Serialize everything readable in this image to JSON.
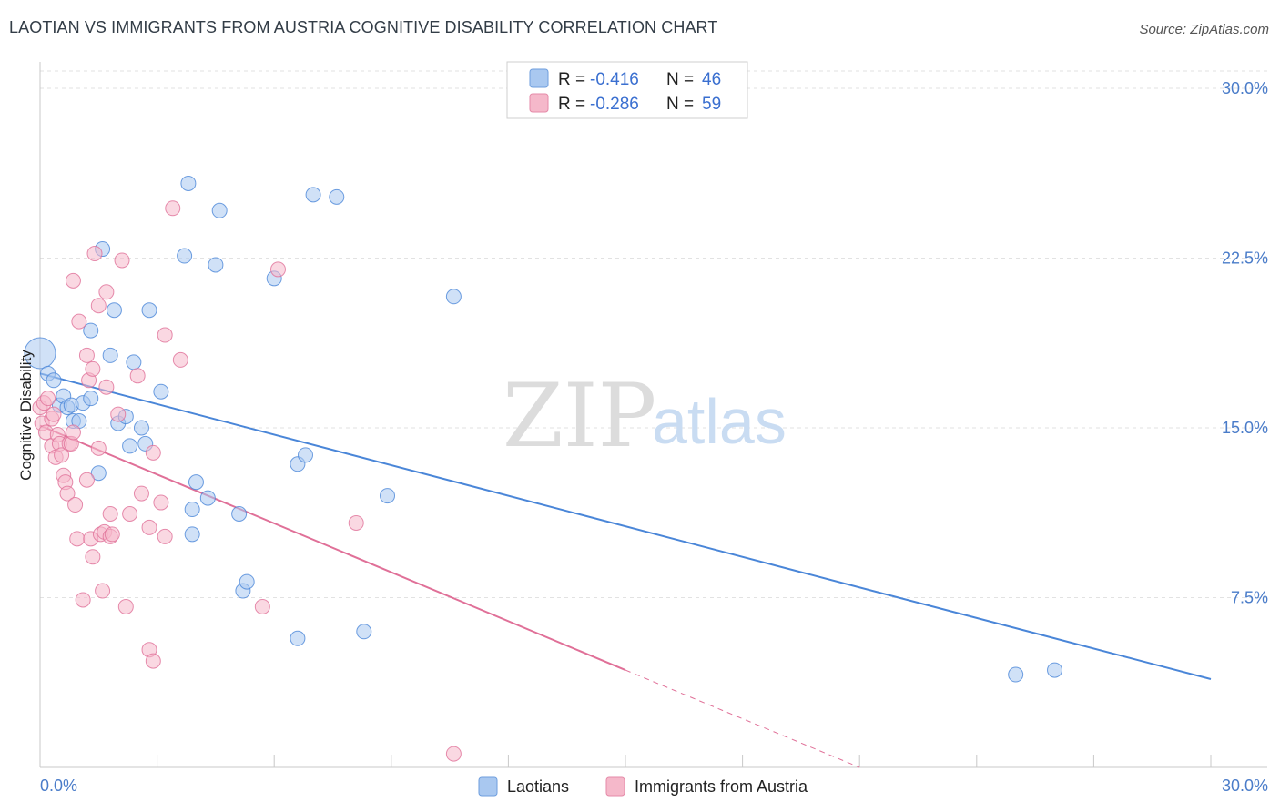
{
  "header": {
    "title": "LAOTIAN VS IMMIGRANTS FROM AUSTRIA COGNITIVE DISABILITY CORRELATION CHART",
    "source": "Source: ZipAtlas.com"
  },
  "watermark": {
    "zip": "ZIP",
    "atlas": "atlas"
  },
  "legend": {
    "rows": [
      {
        "r_label": "R =",
        "r_value": "-0.416",
        "n_label": "N =",
        "n_value": "46",
        "color": "#a9c8f0"
      },
      {
        "r_label": "R =",
        "r_value": "-0.286",
        "n_label": "N =",
        "n_value": "59",
        "color": "#f5b8ca"
      }
    ]
  },
  "chart_data": {
    "type": "scatter",
    "title": "LAOTIAN VS IMMIGRANTS FROM AUSTRIA COGNITIVE DISABILITY CORRELATION CHART",
    "xlabel": "",
    "ylabel": "Cognitive Disability",
    "xlim": [
      0,
      30
    ],
    "ylim": [
      0,
      30
    ],
    "x_tick_labels": [
      "0.0%",
      "30.0%"
    ],
    "y_ticks": [
      7.5,
      15.0,
      22.5,
      30.0
    ],
    "y_tick_labels": [
      "7.5%",
      "15.0%",
      "22.5%",
      "30.0%"
    ],
    "grid": "horizontal dashed",
    "legend_position": "top-center",
    "series": [
      {
        "name": "Laotians",
        "color": "#4a86d8",
        "fill": "#a9c8f0",
        "R": -0.416,
        "N": 46,
        "trend": {
          "x": [
            0,
            30
          ],
          "y": [
            17.4,
            3.9
          ],
          "extend_dashed_to": null
        },
        "points": [
          [
            0.0,
            18.3
          ],
          [
            0.2,
            17.4
          ],
          [
            0.35,
            17.1
          ],
          [
            0.5,
            16.0
          ],
          [
            0.6,
            16.4
          ],
          [
            0.7,
            15.9
          ],
          [
            0.8,
            16.0
          ],
          [
            0.85,
            15.3
          ],
          [
            1.0,
            15.3
          ],
          [
            1.1,
            16.1
          ],
          [
            1.3,
            16.3
          ],
          [
            1.5,
            13.0
          ],
          [
            1.6,
            22.9
          ],
          [
            1.8,
            18.2
          ],
          [
            1.9,
            20.2
          ],
          [
            1.3,
            19.3
          ],
          [
            2.0,
            15.2
          ],
          [
            2.2,
            15.5
          ],
          [
            2.3,
            14.2
          ],
          [
            2.4,
            17.9
          ],
          [
            2.6,
            15.0
          ],
          [
            2.7,
            14.3
          ],
          [
            2.8,
            20.2
          ],
          [
            3.1,
            16.6
          ],
          [
            3.7,
            22.6
          ],
          [
            3.8,
            25.8
          ],
          [
            3.9,
            11.4
          ],
          [
            3.9,
            10.3
          ],
          [
            4.0,
            12.6
          ],
          [
            4.3,
            11.9
          ],
          [
            4.5,
            22.2
          ],
          [
            4.6,
            24.6
          ],
          [
            5.1,
            11.2
          ],
          [
            5.2,
            7.8
          ],
          [
            5.3,
            8.2
          ],
          [
            6.0,
            21.6
          ],
          [
            6.6,
            13.4
          ],
          [
            6.8,
            13.8
          ],
          [
            6.6,
            5.7
          ],
          [
            7.0,
            25.3
          ],
          [
            7.6,
            25.2
          ],
          [
            8.3,
            6.0
          ],
          [
            8.9,
            12.0
          ],
          [
            10.6,
            20.8
          ],
          [
            25.0,
            4.1
          ],
          [
            26.0,
            4.3
          ]
        ]
      },
      {
        "name": "Immigrants from Austria",
        "color": "#e07098",
        "fill": "#f5b8ca",
        "R": -0.286,
        "N": 59,
        "trend": {
          "x": [
            0,
            15
          ],
          "y": [
            15.1,
            4.3
          ],
          "extend_dashed_to": [
            21,
            0
          ]
        },
        "points": [
          [
            0.0,
            15.9
          ],
          [
            0.05,
            15.2
          ],
          [
            0.1,
            16.1
          ],
          [
            0.15,
            14.8
          ],
          [
            0.2,
            16.3
          ],
          [
            0.3,
            15.4
          ],
          [
            0.3,
            14.2
          ],
          [
            0.4,
            13.7
          ],
          [
            0.45,
            14.7
          ],
          [
            0.5,
            14.3
          ],
          [
            0.55,
            13.8
          ],
          [
            0.6,
            12.9
          ],
          [
            0.65,
            12.6
          ],
          [
            0.7,
            12.1
          ],
          [
            0.75,
            14.3
          ],
          [
            0.8,
            14.3
          ],
          [
            0.85,
            14.8
          ],
          [
            0.9,
            11.6
          ],
          [
            0.95,
            10.1
          ],
          [
            1.0,
            19.7
          ],
          [
            0.85,
            21.5
          ],
          [
            1.1,
            7.4
          ],
          [
            1.2,
            12.7
          ],
          [
            1.2,
            18.2
          ],
          [
            1.25,
            17.1
          ],
          [
            1.3,
            10.1
          ],
          [
            1.35,
            9.3
          ],
          [
            1.35,
            17.6
          ],
          [
            1.4,
            22.7
          ],
          [
            1.5,
            14.1
          ],
          [
            1.5,
            20.4
          ],
          [
            1.55,
            10.3
          ],
          [
            1.6,
            7.8
          ],
          [
            1.65,
            10.4
          ],
          [
            1.7,
            16.8
          ],
          [
            1.7,
            21.0
          ],
          [
            1.8,
            11.2
          ],
          [
            1.8,
            10.2
          ],
          [
            1.85,
            10.3
          ],
          [
            2.0,
            15.6
          ],
          [
            2.1,
            22.4
          ],
          [
            2.2,
            7.1
          ],
          [
            2.3,
            11.2
          ],
          [
            2.5,
            17.3
          ],
          [
            2.6,
            12.1
          ],
          [
            2.8,
            10.6
          ],
          [
            2.8,
            5.2
          ],
          [
            2.9,
            13.9
          ],
          [
            2.9,
            4.7
          ],
          [
            3.1,
            11.7
          ],
          [
            3.2,
            10.2
          ],
          [
            3.2,
            19.1
          ],
          [
            3.4,
            24.7
          ],
          [
            3.6,
            18.0
          ],
          [
            5.7,
            7.1
          ],
          [
            6.1,
            22.0
          ],
          [
            8.1,
            10.8
          ],
          [
            10.6,
            0.6
          ],
          [
            0.35,
            15.6
          ]
        ]
      }
    ]
  }
}
